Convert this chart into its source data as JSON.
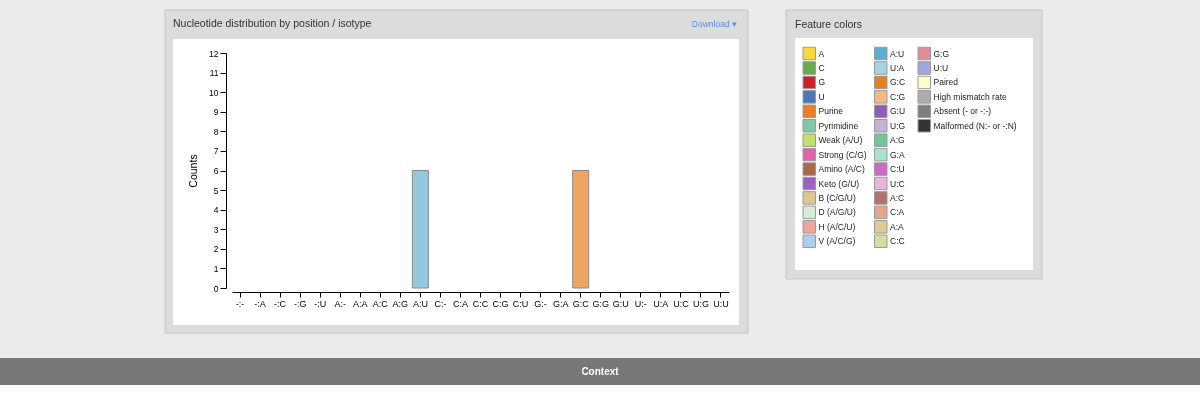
{
  "chart_data": [
    {
      "type": "bar",
      "title": "Nucleotide distribution by position / isotype",
      "ylabel": "Counts",
      "categories": [
        "-:-",
        "-:A",
        "-:C",
        "-:G",
        "-:U",
        "A:-",
        "A:A",
        "A:C",
        "A:G",
        "A:U",
        "C:-",
        "C:A",
        "C:C",
        "C:G",
        "C:U",
        "G:-",
        "G:A",
        "G:C",
        "G:G",
        "G:U",
        "U:-",
        "U:A",
        "U:C",
        "U:G",
        "U:U"
      ],
      "values": [
        0,
        0,
        0,
        0,
        0,
        0,
        0,
        0,
        0,
        6,
        0,
        0,
        0,
        0,
        0,
        0,
        0,
        6,
        0,
        0,
        0,
        0,
        0,
        0,
        0
      ],
      "colors": [
        null,
        null,
        null,
        null,
        null,
        null,
        null,
        null,
        null,
        "#92c9de",
        null,
        null,
        null,
        null,
        null,
        null,
        null,
        "#eca562",
        null,
        null,
        null,
        null,
        null,
        null,
        null
      ],
      "ylim": [
        0,
        12
      ],
      "yticks": [
        0,
        1,
        2,
        3,
        4,
        5,
        6,
        7,
        8,
        9,
        10,
        11,
        12
      ],
      "annotations": [
        "Download ▾"
      ]
    },
    {
      "type": "other",
      "title": "Feature colors",
      "categories": [
        "A",
        "C",
        "G",
        "U",
        "Purine",
        "Pyrimidine",
        "Weak (A/U)",
        "Strong (C/G)",
        "Amino (A/C)",
        "Keto (G/U)",
        "B (C/G/U)",
        "D (A/G/U)",
        "H (A/C/U)",
        "V (A/C/G)",
        "A:U",
        "U:A",
        "G:C",
        "C:G",
        "G:U",
        "U:G",
        "A:G",
        "G:A",
        "C:U",
        "U:C",
        "A:C",
        "C:A",
        "A:A",
        "C:C",
        "G:G",
        "U:U",
        "Paired",
        "High mismatch rate",
        "Absent (- or -:-)",
        "Malformed (N:- or -:N)"
      ],
      "colors": [
        "#f9d73e",
        "#6aaa4f",
        "#c9222a",
        "#4c76b4",
        "#e98027",
        "#83c6a4",
        "#c3e06e",
        "#e063ac",
        "#a8694a",
        "#9c62bf",
        "#dfc594",
        "#d6ecd4",
        "#eda59c",
        "#b0cdee",
        "#5bb0d1",
        "#aad2e7",
        "#e67e22",
        "#f2b97d",
        "#8e5db8",
        "#c6b0d9",
        "#70c59a",
        "#a7e4cf",
        "#cb6cc2",
        "#e9b6d8",
        "#b27368",
        "#e6a68c",
        "#e0ca93",
        "#d3e09d",
        "#dd8f99",
        "#9fa7df",
        "#ffffcc",
        "#acacac",
        "#7f7f7f",
        "#333333"
      ]
    },
    {
      "type": "other",
      "title": "Context"
    }
  ]
}
